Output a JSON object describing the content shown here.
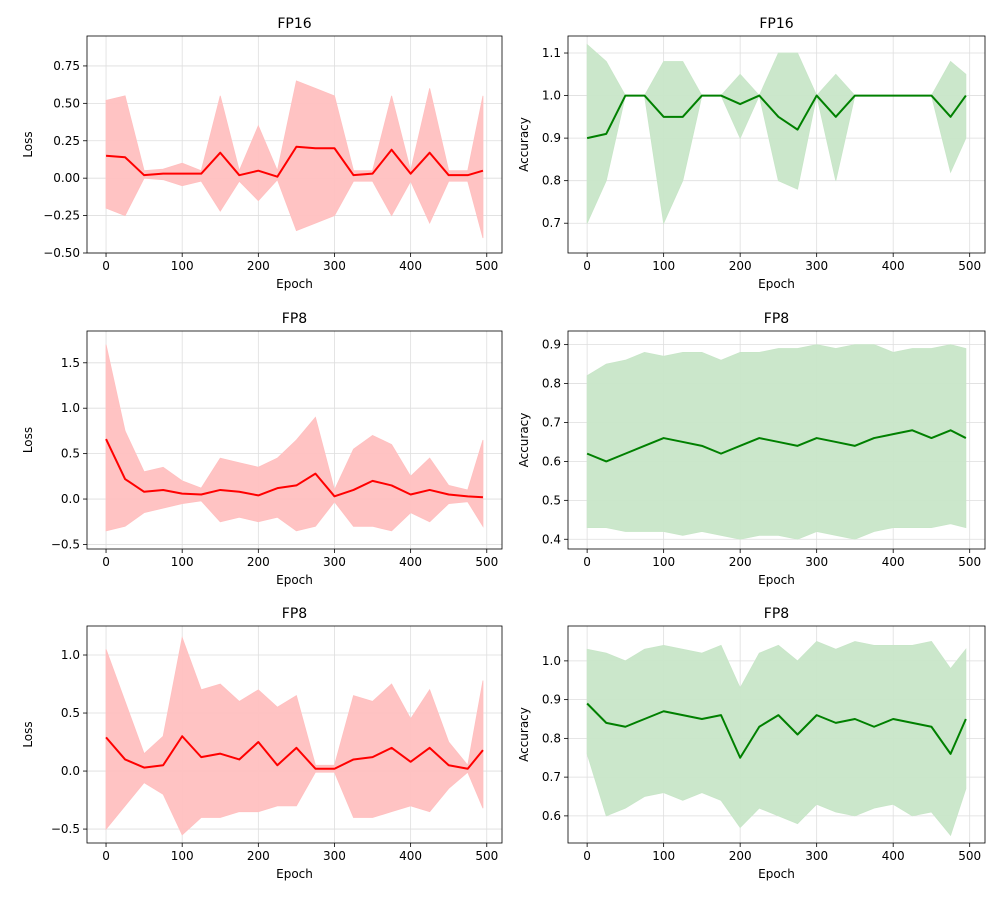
{
  "chart_data": [
    {
      "type": "line",
      "title": "FP16",
      "xlabel": "Epoch",
      "ylabel": "Loss",
      "xlim": [
        -25,
        520
      ],
      "ylim": [
        -0.5,
        0.95
      ],
      "xticks": [
        0,
        100,
        200,
        300,
        400,
        500
      ],
      "xtick_labels": [
        "0",
        "100",
        "200",
        "300",
        "400",
        "500"
      ],
      "yticks": [
        -0.5,
        -0.25,
        0.0,
        0.25,
        0.5,
        0.75
      ],
      "ytick_labels": [
        "−0.50",
        "−0.25",
        "0.00",
        "0.25",
        "0.50",
        "0.75"
      ],
      "line_color": "#ff0000",
      "band_color": "#ffc0c0",
      "x": [
        0,
        25,
        50,
        75,
        100,
        125,
        150,
        175,
        200,
        225,
        250,
        275,
        300,
        325,
        350,
        375,
        400,
        425,
        450,
        475,
        495
      ],
      "series": [
        {
          "name": "mean",
          "values": [
            0.15,
            0.14,
            0.02,
            0.03,
            0.03,
            0.03,
            0.17,
            0.02,
            0.05,
            0.01,
            0.21,
            0.2,
            0.2,
            0.02,
            0.03,
            0.19,
            0.03,
            0.17,
            0.02,
            0.02,
            0.05
          ]
        },
        {
          "name": "upper",
          "values": [
            0.52,
            0.55,
            0.05,
            0.06,
            0.1,
            0.05,
            0.55,
            0.05,
            0.35,
            0.05,
            0.65,
            0.6,
            0.55,
            0.05,
            0.05,
            0.55,
            0.05,
            0.6,
            0.05,
            0.05,
            0.55
          ]
        },
        {
          "name": "lower",
          "values": [
            -0.2,
            -0.25,
            0.0,
            -0.01,
            -0.05,
            -0.02,
            -0.22,
            -0.02,
            -0.15,
            -0.01,
            -0.35,
            -0.3,
            -0.25,
            -0.02,
            -0.02,
            -0.25,
            -0.02,
            -0.3,
            -0.02,
            -0.02,
            -0.4
          ]
        }
      ]
    },
    {
      "type": "line",
      "title": "FP16",
      "xlabel": "Epoch",
      "ylabel": "Accuracy",
      "xlim": [
        -25,
        520
      ],
      "ylim": [
        0.63,
        1.14
      ],
      "xticks": [
        0,
        100,
        200,
        300,
        400,
        500
      ],
      "xtick_labels": [
        "0",
        "100",
        "200",
        "300",
        "400",
        "500"
      ],
      "yticks": [
        0.7,
        0.8,
        0.9,
        1.0,
        1.1
      ],
      "ytick_labels": [
        "0.7",
        "0.8",
        "0.9",
        "1.0",
        "1.1"
      ],
      "line_color": "#008000",
      "band_color": "#c8e6c8",
      "x": [
        0,
        25,
        50,
        75,
        100,
        125,
        150,
        175,
        200,
        225,
        250,
        275,
        300,
        325,
        350,
        375,
        400,
        425,
        450,
        475,
        495
      ],
      "series": [
        {
          "name": "mean",
          "values": [
            0.9,
            0.91,
            1.0,
            1.0,
            0.95,
            0.95,
            1.0,
            1.0,
            0.98,
            1.0,
            0.95,
            0.92,
            1.0,
            0.95,
            1.0,
            1.0,
            1.0,
            1.0,
            1.0,
            0.95,
            1.0
          ]
        },
        {
          "name": "upper",
          "values": [
            1.12,
            1.08,
            1.0,
            1.0,
            1.08,
            1.08,
            1.0,
            1.0,
            1.05,
            1.0,
            1.1,
            1.1,
            1.0,
            1.05,
            1.0,
            1.0,
            1.0,
            1.0,
            1.0,
            1.08,
            1.05
          ]
        },
        {
          "name": "lower",
          "values": [
            0.7,
            0.8,
            1.0,
            1.0,
            0.7,
            0.8,
            1.0,
            1.0,
            0.9,
            1.0,
            0.8,
            0.78,
            1.0,
            0.8,
            1.0,
            1.0,
            1.0,
            1.0,
            1.0,
            0.82,
            0.9
          ]
        }
      ]
    },
    {
      "type": "line",
      "title": "FP8",
      "xlabel": "Epoch",
      "ylabel": "Loss",
      "xlim": [
        -25,
        520
      ],
      "ylim": [
        -0.55,
        1.85
      ],
      "xticks": [
        0,
        100,
        200,
        300,
        400,
        500
      ],
      "xtick_labels": [
        "0",
        "100",
        "200",
        "300",
        "400",
        "500"
      ],
      "yticks": [
        -0.5,
        0.0,
        0.5,
        1.0,
        1.5
      ],
      "ytick_labels": [
        "−0.5",
        "0.0",
        "0.5",
        "1.0",
        "1.5"
      ],
      "line_color": "#ff0000",
      "band_color": "#ffc0c0",
      "x": [
        0,
        25,
        50,
        75,
        100,
        125,
        150,
        175,
        200,
        225,
        250,
        275,
        300,
        325,
        350,
        375,
        400,
        425,
        450,
        475,
        495
      ],
      "series": [
        {
          "name": "mean",
          "values": [
            0.66,
            0.22,
            0.08,
            0.1,
            0.06,
            0.05,
            0.1,
            0.08,
            0.04,
            0.12,
            0.15,
            0.28,
            0.03,
            0.1,
            0.2,
            0.15,
            0.05,
            0.1,
            0.05,
            0.03,
            0.02
          ]
        },
        {
          "name": "upper",
          "values": [
            1.7,
            0.75,
            0.3,
            0.35,
            0.2,
            0.12,
            0.45,
            0.4,
            0.35,
            0.45,
            0.65,
            0.9,
            0.1,
            0.55,
            0.7,
            0.6,
            0.25,
            0.45,
            0.15,
            0.1,
            0.65
          ]
        },
        {
          "name": "lower",
          "values": [
            -0.35,
            -0.3,
            -0.15,
            -0.1,
            -0.05,
            -0.02,
            -0.25,
            -0.2,
            -0.25,
            -0.2,
            -0.35,
            -0.3,
            -0.03,
            -0.3,
            -0.3,
            -0.35,
            -0.15,
            -0.25,
            -0.05,
            -0.03,
            -0.3
          ]
        }
      ]
    },
    {
      "type": "line",
      "title": "FP8",
      "xlabel": "Epoch",
      "ylabel": "Accuracy",
      "xlim": [
        -25,
        520
      ],
      "ylim": [
        0.375,
        0.935
      ],
      "xticks": [
        0,
        100,
        200,
        300,
        400,
        500
      ],
      "xtick_labels": [
        "0",
        "100",
        "200",
        "300",
        "400",
        "500"
      ],
      "yticks": [
        0.4,
        0.5,
        0.6,
        0.7,
        0.8,
        0.9
      ],
      "ytick_labels": [
        "0.4",
        "0.5",
        "0.6",
        "0.7",
        "0.8",
        "0.9"
      ],
      "line_color": "#008000",
      "band_color": "#c8e6c8",
      "x": [
        0,
        25,
        50,
        75,
        100,
        125,
        150,
        175,
        200,
        225,
        250,
        275,
        300,
        325,
        350,
        375,
        400,
        425,
        450,
        475,
        495
      ],
      "series": [
        {
          "name": "mean",
          "values": [
            0.62,
            0.6,
            0.62,
            0.64,
            0.66,
            0.65,
            0.64,
            0.62,
            0.64,
            0.66,
            0.65,
            0.64,
            0.66,
            0.65,
            0.64,
            0.66,
            0.67,
            0.68,
            0.66,
            0.68,
            0.66
          ]
        },
        {
          "name": "upper",
          "values": [
            0.82,
            0.85,
            0.86,
            0.88,
            0.87,
            0.88,
            0.88,
            0.86,
            0.88,
            0.88,
            0.89,
            0.89,
            0.9,
            0.89,
            0.9,
            0.9,
            0.88,
            0.89,
            0.89,
            0.9,
            0.89
          ]
        },
        {
          "name": "lower",
          "values": [
            0.43,
            0.43,
            0.42,
            0.42,
            0.42,
            0.41,
            0.42,
            0.41,
            0.4,
            0.41,
            0.41,
            0.4,
            0.42,
            0.41,
            0.4,
            0.42,
            0.43,
            0.43,
            0.43,
            0.44,
            0.43
          ]
        }
      ]
    },
    {
      "type": "line",
      "title": "FP8",
      "xlabel": "Epoch",
      "ylabel": "Loss",
      "xlim": [
        -25,
        520
      ],
      "ylim": [
        -0.62,
        1.25
      ],
      "xticks": [
        0,
        100,
        200,
        300,
        400,
        500
      ],
      "xtick_labels": [
        "0",
        "100",
        "200",
        "300",
        "400",
        "500"
      ],
      "yticks": [
        -0.5,
        0.0,
        0.5,
        1.0
      ],
      "ytick_labels": [
        "−0.5",
        "0.0",
        "0.5",
        "1.0"
      ],
      "line_color": "#ff0000",
      "band_color": "#ffc0c0",
      "x": [
        0,
        25,
        50,
        75,
        100,
        125,
        150,
        175,
        200,
        225,
        250,
        275,
        300,
        325,
        350,
        375,
        400,
        425,
        450,
        475,
        495
      ],
      "series": [
        {
          "name": "mean",
          "values": [
            0.29,
            0.1,
            0.03,
            0.05,
            0.3,
            0.12,
            0.15,
            0.1,
            0.25,
            0.05,
            0.2,
            0.02,
            0.02,
            0.1,
            0.12,
            0.2,
            0.08,
            0.2,
            0.05,
            0.02,
            0.18
          ]
        },
        {
          "name": "upper",
          "values": [
            1.05,
            0.6,
            0.15,
            0.3,
            1.15,
            0.7,
            0.75,
            0.6,
            0.7,
            0.55,
            0.65,
            0.05,
            0.05,
            0.65,
            0.6,
            0.75,
            0.45,
            0.7,
            0.25,
            0.05,
            0.78
          ]
        },
        {
          "name": "lower",
          "values": [
            -0.5,
            -0.3,
            -0.1,
            -0.2,
            -0.55,
            -0.4,
            -0.4,
            -0.35,
            -0.35,
            -0.3,
            -0.3,
            -0.01,
            -0.01,
            -0.4,
            -0.4,
            -0.35,
            -0.3,
            -0.35,
            -0.15,
            -0.01,
            -0.32
          ]
        }
      ]
    },
    {
      "type": "line",
      "title": "FP8",
      "xlabel": "Epoch",
      "ylabel": "Accuracy",
      "xlim": [
        -25,
        520
      ],
      "ylim": [
        0.53,
        1.09
      ],
      "xticks": [
        0,
        100,
        200,
        300,
        400,
        500
      ],
      "xtick_labels": [
        "0",
        "100",
        "200",
        "300",
        "400",
        "500"
      ],
      "yticks": [
        0.6,
        0.7,
        0.8,
        0.9,
        1.0
      ],
      "ytick_labels": [
        "0.6",
        "0.7",
        "0.8",
        "0.9",
        "1.0"
      ],
      "line_color": "#008000",
      "band_color": "#c8e6c8",
      "x": [
        0,
        25,
        50,
        75,
        100,
        125,
        150,
        175,
        200,
        225,
        250,
        275,
        300,
        325,
        350,
        375,
        400,
        425,
        450,
        475,
        495
      ],
      "series": [
        {
          "name": "mean",
          "values": [
            0.89,
            0.84,
            0.83,
            0.85,
            0.87,
            0.86,
            0.85,
            0.86,
            0.75,
            0.83,
            0.86,
            0.81,
            0.86,
            0.84,
            0.85,
            0.83,
            0.85,
            0.84,
            0.83,
            0.76,
            0.85
          ]
        },
        {
          "name": "upper",
          "values": [
            1.03,
            1.02,
            1.0,
            1.03,
            1.04,
            1.03,
            1.02,
            1.04,
            0.93,
            1.02,
            1.04,
            1.0,
            1.05,
            1.03,
            1.05,
            1.04,
            1.04,
            1.04,
            1.05,
            0.98,
            1.03
          ]
        },
        {
          "name": "lower",
          "values": [
            0.76,
            0.6,
            0.62,
            0.65,
            0.66,
            0.64,
            0.66,
            0.64,
            0.57,
            0.62,
            0.6,
            0.58,
            0.63,
            0.61,
            0.6,
            0.62,
            0.63,
            0.6,
            0.61,
            0.55,
            0.67
          ]
        }
      ]
    }
  ]
}
